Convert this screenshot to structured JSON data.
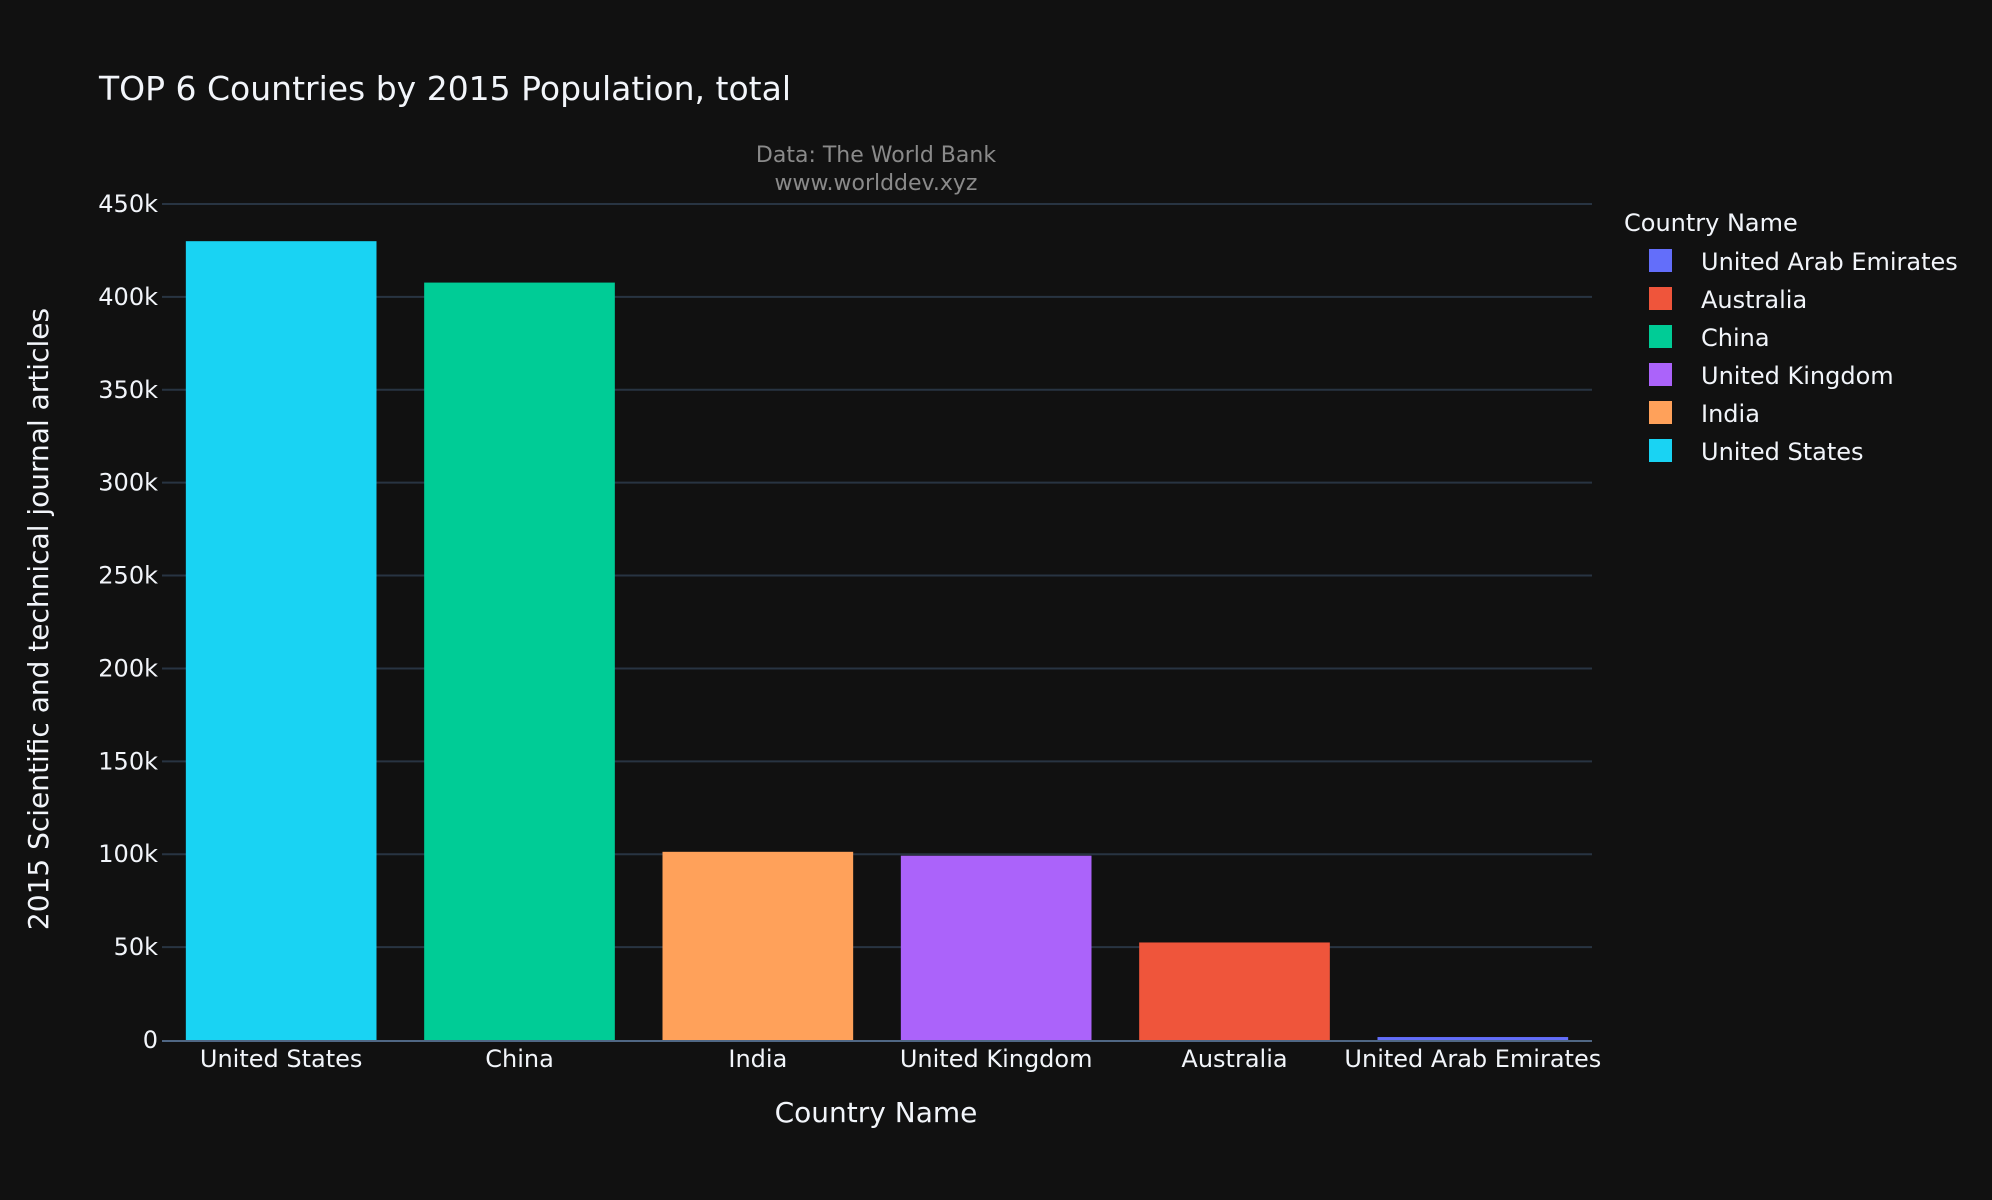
{
  "chart_data": {
    "type": "bar",
    "title": "TOP 6 Countries by 2015 Population, total",
    "annotation": [
      "Data: The World Bank",
      "www.worlddev.xyz"
    ],
    "xlabel": "Country Name",
    "ylabel": "2015 Scientific and technical journal articles",
    "ylim": [
      0,
      450000
    ],
    "yticks": [
      0,
      50000,
      100000,
      150000,
      200000,
      250000,
      300000,
      350000,
      400000,
      450000
    ],
    "ytick_labels": [
      "0",
      "50k",
      "100k",
      "150k",
      "200k",
      "250k",
      "300k",
      "350k",
      "400k",
      "450k"
    ],
    "grid": true,
    "categories": [
      "United States",
      "China",
      "India",
      "United Kingdom",
      "Australia",
      "United Arab Emirates"
    ],
    "values": [
      429989,
      407700,
      101300,
      99200,
      52500,
      1600
    ],
    "colors": [
      "#19d3f3",
      "#00cc96",
      "#ffa15a",
      "#ab63fa",
      "#ef553b",
      "#636efa"
    ],
    "legend": {
      "title": "Country Name",
      "position": "top-right",
      "items": [
        {
          "label": "United Arab Emirates",
          "color": "#636efa"
        },
        {
          "label": "Australia",
          "color": "#ef553b"
        },
        {
          "label": "China",
          "color": "#00cc96"
        },
        {
          "label": "United Kingdom",
          "color": "#ab63fa"
        },
        {
          "label": "India",
          "color": "#ffa15a"
        },
        {
          "label": "United States",
          "color": "#19d3f3"
        }
      ]
    }
  }
}
